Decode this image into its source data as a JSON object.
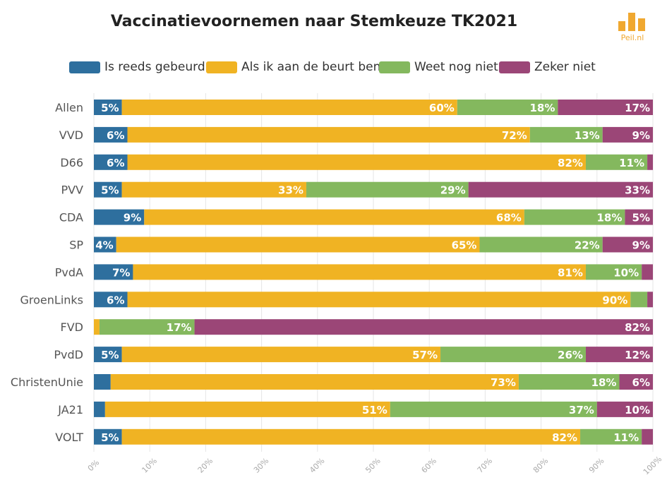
{
  "chart_data": {
    "type": "bar",
    "orientation": "horizontal",
    "stacked": true,
    "title": "Vaccinatievoornemen naar Stemkeuze TK2021",
    "categories": [
      "Allen",
      "VVD",
      "D66",
      "PVV",
      "CDA",
      "SP",
      "PvdA",
      "GroenLinks",
      "FVD",
      "PvdD",
      "ChristenUnie",
      "JA21",
      "VOLT"
    ],
    "series": [
      {
        "name": "Is reeds gebeurd",
        "color": "#2e6f9e",
        "values": [
          5,
          6,
          6,
          5,
          9,
          4,
          7,
          6,
          0,
          5,
          3,
          2,
          5
        ],
        "labels": [
          "5%",
          "6%",
          "6%",
          "5%",
          "9%",
          "4%",
          "7%",
          "6%",
          "",
          "5%",
          "",
          "",
          "5%"
        ]
      },
      {
        "name": "Als ik aan de beurt ben",
        "color": "#f0b323",
        "values": [
          60,
          72,
          82,
          33,
          68,
          65,
          81,
          90,
          1,
          57,
          73,
          51,
          82
        ],
        "labels": [
          "60%",
          "72%",
          "82%",
          "33%",
          "68%",
          "65%",
          "81%",
          "90%",
          "",
          "57%",
          "73%",
          "51%",
          "82%"
        ]
      },
      {
        "name": "Weet nog niet",
        "color": "#84b85e",
        "values": [
          18,
          13,
          11,
          29,
          18,
          22,
          10,
          3,
          17,
          26,
          18,
          37,
          11
        ],
        "labels": [
          "18%",
          "13%",
          "11%",
          "29%",
          "18%",
          "22%",
          "10%",
          "",
          "17%",
          "26%",
          "18%",
          "37%",
          "11%"
        ]
      },
      {
        "name": "Zeker niet",
        "color": "#9b4677",
        "values": [
          17,
          9,
          1,
          33,
          5,
          9,
          2,
          1,
          82,
          12,
          6,
          10,
          2
        ],
        "labels": [
          "17%",
          "9%",
          "",
          "33%",
          "5%",
          "9%",
          "",
          "",
          "82%",
          "12%",
          "6%",
          "10%",
          ""
        ]
      }
    ],
    "xlim": [
      0,
      100
    ],
    "xticks": [
      "0%",
      "10%",
      "20%",
      "30%",
      "40%",
      "50%",
      "60%",
      "70%",
      "80%",
      "90%",
      "100%"
    ],
    "grid": true,
    "legend_position": "top"
  },
  "logo": {
    "text": "Peil.nl"
  }
}
